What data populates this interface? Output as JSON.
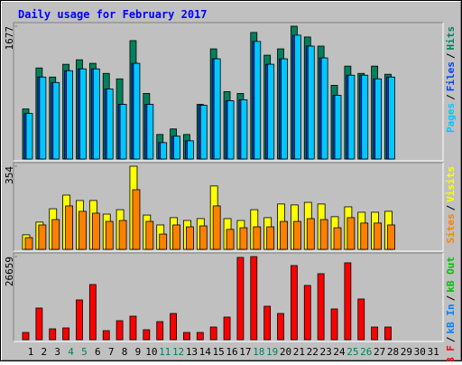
{
  "title": "Daily usage for February 2017",
  "chart_data": [
    {
      "type": "bar",
      "ylim": [
        0,
        1677
      ],
      "yticks": [
        1677
      ],
      "separator": "/",
      "series": [
        {
          "name": "Hits",
          "color": "#00805c",
          "values": [
            632,
            1150,
            1035,
            1196,
            1253,
            1208,
            1081,
            1012,
            1495,
            828,
            310,
            380,
            310,
            690,
            1391,
            851,
            828,
            1598,
            1311,
            1391,
            1677,
            1541,
            1426,
            931,
            1173,
            1081,
            1173,
            1070,
            null,
            null,
            null
          ]
        },
        {
          "name": "Files",
          "color": "#0040ff",
          "values": [
            575,
            1035,
            966,
            1115,
            1138,
            1138,
            885,
            690,
            1208,
            690,
            207,
            288,
            230,
            679,
            1265,
            736,
            748,
            1484,
            1196,
            1265,
            1564,
            1426,
            1277,
            805,
            1058,
            1058,
            1012,
            1035,
            null,
            null,
            null
          ]
        },
        {
          "name": "Pages",
          "color": "#00c8ff",
          "values": [
            575,
            1035,
            966,
            1115,
            1138,
            1138,
            885,
            690,
            1208,
            690,
            207,
            288,
            230,
            679,
            1265,
            736,
            748,
            1484,
            1196,
            1265,
            1564,
            1426,
            1277,
            805,
            1058,
            1058,
            1012,
            1035,
            null,
            null,
            null
          ]
        }
      ]
    },
    {
      "type": "bar",
      "ylim": [
        0,
        354
      ],
      "yticks": [
        354
      ],
      "separator": "/",
      "series": [
        {
          "name": "Visits",
          "color": "#ffff00",
          "values": [
            62,
            116,
            173,
            231,
            208,
            208,
            150,
            169,
            354,
            146,
            104,
            135,
            123,
            131,
            270,
            131,
            123,
            169,
            135,
            193,
            189,
            200,
            193,
            139,
            181,
            158,
            158,
            162,
            null,
            null,
            null
          ]
        },
        {
          "name": "Sites",
          "color": "#ff8000",
          "values": [
            50,
            104,
            127,
            185,
            162,
            154,
            119,
            123,
            254,
            119,
            65,
            104,
            96,
            100,
            185,
            85,
            92,
            96,
            96,
            119,
            119,
            131,
            127,
            92,
            135,
            112,
            112,
            104,
            null,
            null,
            null
          ]
        }
      ]
    },
    {
      "type": "bar",
      "ylim": [
        0,
        26659
      ],
      "yticks": [
        26659
      ],
      "separator": "/",
      "categories": [
        "1",
        "2",
        "3",
        "4",
        "5",
        "6",
        "7",
        "8",
        "9",
        "10",
        "11",
        "12",
        "13",
        "14",
        "15",
        "16",
        "17",
        "18",
        "19",
        "20",
        "21",
        "22",
        "23",
        "24",
        "25",
        "26",
        "27",
        "28",
        "29",
        "30",
        "31"
      ],
      "highlight_categories": [
        "4",
        "5",
        "11",
        "12",
        "18",
        "19",
        "25",
        "26"
      ],
      "highlight_color": "#00805c",
      "series": [
        {
          "name": "kB Out",
          "color": "#00c000",
          "values": [
            0,
            0,
            0,
            0,
            0,
            0,
            0,
            0,
            0,
            0,
            0,
            0,
            0,
            0,
            0,
            0,
            0,
            0,
            0,
            0,
            0,
            0,
            0,
            0,
            0,
            0,
            0,
            0,
            null,
            null,
            null
          ]
        },
        {
          "name": "kB In",
          "color": "#0080ff",
          "values": [
            0,
            0,
            0,
            0,
            0,
            0,
            0,
            0,
            0,
            0,
            0,
            0,
            0,
            0,
            0,
            0,
            0,
            0,
            0,
            0,
            0,
            0,
            0,
            0,
            0,
            0,
            0,
            0,
            null,
            null,
            null
          ]
        },
        {
          "name": "kB F",
          "color": "#ff0000",
          "values": [
            2320,
            10150,
            3480,
            3770,
            12760,
            17690,
            2900,
            6090,
            7540,
            3190,
            5800,
            8410,
            2320,
            2320,
            4060,
            7250,
            26390,
            26659,
            10730,
            8410,
            23780,
            17400,
            21170,
            9860,
            24650,
            13050,
            4060,
            4060,
            null,
            null,
            null
          ]
        }
      ]
    }
  ]
}
